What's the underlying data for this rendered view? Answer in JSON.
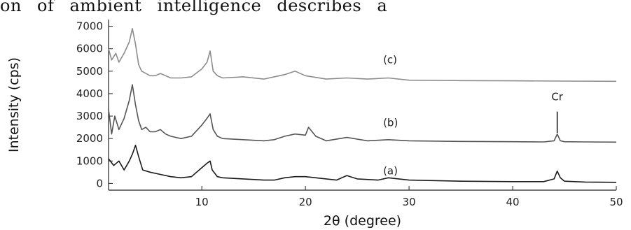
{
  "page": {
    "header_text": "on of ambient intelligence describes a"
  },
  "chart_data": {
    "type": "line",
    "title": "",
    "xlabel": "2θ (degree)",
    "ylabel": "Intensity (cps)",
    "xlim": [
      1,
      50
    ],
    "ylim": [
      -300,
      7300
    ],
    "xticks": [
      10,
      20,
      30,
      40,
      50
    ],
    "yticks": [
      0,
      1000,
      2000,
      3000,
      4000,
      5000,
      6000,
      7000
    ],
    "grid": false,
    "series": [
      {
        "name": "(a)",
        "color": "#1a1a1a",
        "label_pos": [
          27.5,
          400
        ],
        "x": [
          1,
          1.5,
          2,
          2.5,
          3,
          3.3,
          3.6,
          3.9,
          4.3,
          5,
          6,
          7,
          8,
          9,
          10,
          10.5,
          10.8,
          11,
          11.5,
          12,
          14,
          16,
          17,
          18,
          19,
          20,
          21,
          22,
          23,
          24,
          25,
          27,
          28,
          30,
          35,
          40,
          43,
          44,
          44.3,
          44.6,
          45,
          47,
          50
        ],
        "y": [
          1100,
          800,
          1000,
          600,
          1000,
          1300,
          1700,
          1200,
          600,
          500,
          400,
          300,
          250,
          300,
          700,
          900,
          1000,
          600,
          300,
          250,
          200,
          150,
          150,
          250,
          300,
          300,
          250,
          200,
          150,
          350,
          200,
          150,
          250,
          150,
          100,
          80,
          80,
          200,
          550,
          250,
          100,
          60,
          50
        ]
      },
      {
        "name": "(b)",
        "color": "#555555",
        "label_pos": [
          27.5,
          2550
        ],
        "x": [
          1,
          1.3,
          1.6,
          2,
          2.5,
          3,
          3.3,
          3.6,
          3.9,
          4.2,
          4.6,
          5,
          5.5,
          6,
          6.5,
          7,
          8,
          9,
          10,
          10.5,
          10.8,
          11.1,
          11.5,
          12,
          14,
          16,
          17,
          18,
          19,
          20,
          20.3,
          21,
          22,
          24,
          26,
          28,
          30,
          35,
          40,
          43,
          44,
          44.3,
          44.6,
          45,
          47,
          50
        ],
        "y": [
          3300,
          2200,
          3000,
          2400,
          2900,
          3700,
          4400,
          3500,
          2800,
          2400,
          2500,
          2300,
          2300,
          2400,
          2200,
          2100,
          2000,
          2100,
          2600,
          2900,
          3100,
          2400,
          2100,
          2000,
          1950,
          1900,
          1950,
          2100,
          2200,
          2150,
          2500,
          2100,
          1900,
          2050,
          1900,
          1950,
          1900,
          1870,
          1860,
          1850,
          1900,
          2200,
          1900,
          1860,
          1850,
          1840
        ]
      },
      {
        "name": "(c)",
        "color": "#8c8c8c",
        "label_pos": [
          27.5,
          5350
        ],
        "x": [
          1,
          1.3,
          1.7,
          2,
          2.5,
          3,
          3.3,
          3.6,
          3.9,
          4.2,
          4.6,
          5,
          5.5,
          6,
          6.5,
          7,
          8,
          9,
          10,
          10.5,
          10.8,
          11.1,
          11.5,
          12,
          14,
          16,
          18,
          19,
          20,
          22,
          24,
          26,
          28,
          30,
          35,
          40,
          45,
          50
        ],
        "y": [
          6000,
          5500,
          5800,
          5400,
          5800,
          6300,
          6900,
          6200,
          5300,
          5000,
          4900,
          4800,
          4800,
          4900,
          4800,
          4700,
          4700,
          4750,
          5100,
          5400,
          5900,
          5000,
          4800,
          4700,
          4750,
          4650,
          4850,
          5000,
          4800,
          4650,
          4700,
          4650,
          4700,
          4600,
          4580,
          4570,
          4560,
          4550
        ]
      }
    ],
    "annotations": [
      {
        "text": "Cr",
        "x": 44.3,
        "y": 3700,
        "arrow_from": 3200,
        "arrow_to": 2250
      }
    ]
  }
}
